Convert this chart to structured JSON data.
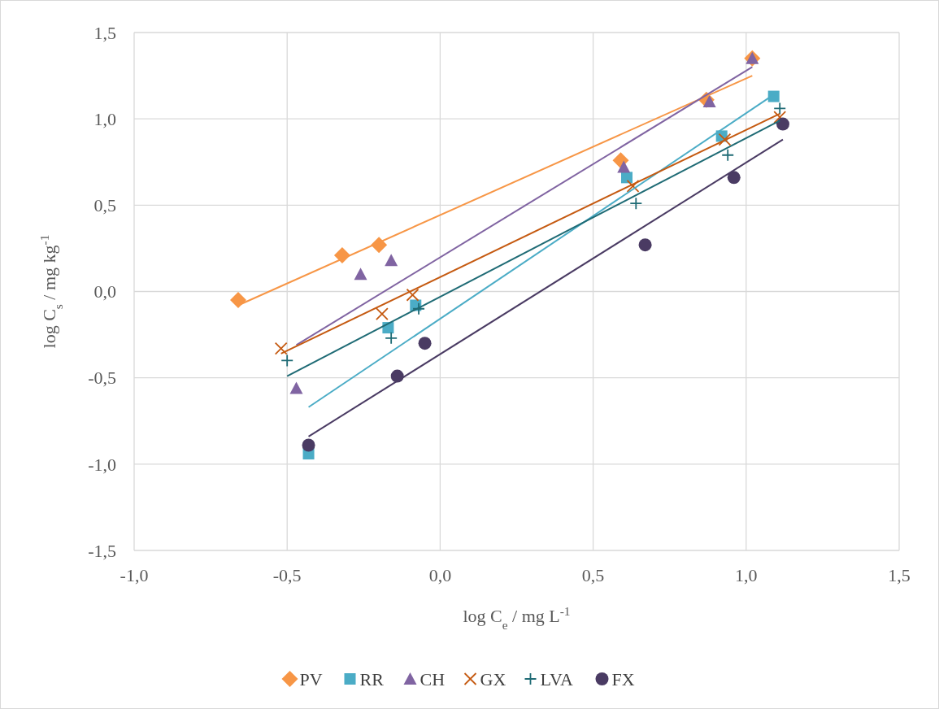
{
  "chart_data": {
    "type": "scatter",
    "xlabel": "log C$_{e}$ / mg L$^{-1}$",
    "ylabel": "log C$_{s}$ / mg kg$^{-1}$",
    "xlim": [
      -1,
      1.5
    ],
    "ylim": [
      -1.5,
      1.5
    ],
    "xticks": [
      {
        "value": -1,
        "label": "-1,0"
      },
      {
        "value": -0.5,
        "label": "-0,5"
      },
      {
        "value": 0,
        "label": "0,0"
      },
      {
        "value": 0.5,
        "label": "0,5"
      },
      {
        "value": 1,
        "label": "1,0"
      },
      {
        "value": 1.5,
        "label": "1,5"
      }
    ],
    "yticks": [
      {
        "value": -1.5,
        "label": "-1,5"
      },
      {
        "value": -1,
        "label": "-1,0"
      },
      {
        "value": -0.5,
        "label": "-0,5"
      },
      {
        "value": 0,
        "label": "0,0"
      },
      {
        "value": 0.5,
        "label": "0,5"
      },
      {
        "value": 1,
        "label": "1,0"
      },
      {
        "value": 1.5,
        "label": "1,5"
      }
    ],
    "grid": true,
    "legend": "bottom",
    "series": [
      {
        "name": "PV",
        "color": "#f79646",
        "marker": "diamond",
        "x": [
          -0.66,
          -0.32,
          -0.2,
          0.59,
          0.87,
          1.02
        ],
        "values": [
          -0.05,
          0.21,
          0.27,
          0.76,
          1.11,
          1.35
        ]
      },
      {
        "name": "RR",
        "color": "#4bacc6",
        "marker": "square",
        "x": [
          -0.43,
          -0.17,
          -0.08,
          0.61,
          0.92,
          1.09
        ],
        "values": [
          -0.94,
          -0.21,
          -0.08,
          0.66,
          0.9,
          1.13
        ]
      },
      {
        "name": "CH",
        "color": "#8064a2",
        "marker": "triangle",
        "x": [
          -0.47,
          -0.26,
          -0.16,
          0.6,
          0.88,
          1.02
        ],
        "values": [
          -0.56,
          0.1,
          0.18,
          0.72,
          1.1,
          1.35
        ]
      },
      {
        "name": "GX",
        "color": "#c55a11",
        "marker": "cross",
        "x": [
          -0.52,
          -0.19,
          -0.09,
          0.63,
          0.93,
          1.11
        ],
        "values": [
          -0.33,
          -0.13,
          -0.02,
          0.61,
          0.88,
          1.01
        ]
      },
      {
        "name": "LVA",
        "color": "#1f6b75",
        "marker": "plus",
        "x": [
          -0.5,
          -0.16,
          -0.07,
          0.64,
          0.94,
          1.11
        ],
        "values": [
          -0.4,
          -0.27,
          -0.1,
          0.51,
          0.79,
          1.06
        ]
      },
      {
        "name": "FX",
        "color": "#4a3b63",
        "marker": "circle",
        "x": [
          -0.43,
          -0.14,
          -0.05,
          0.67,
          0.96,
          1.12
        ],
        "values": [
          -0.89,
          -0.49,
          -0.3,
          0.27,
          0.66,
          0.97
        ]
      },
      {
        "type": "line",
        "color": "#f79646",
        "x": [
          -0.66,
          1.02
        ],
        "values": [
          -0.08,
          1.25
        ]
      },
      {
        "type": "line",
        "color": "#4bacc6",
        "x": [
          -0.43,
          1.09
        ],
        "values": [
          -0.67,
          1.14
        ]
      },
      {
        "type": "line",
        "color": "#8064a2",
        "x": [
          -0.47,
          1.02
        ],
        "values": [
          -0.31,
          1.3
        ]
      },
      {
        "type": "line",
        "color": "#c55a11",
        "x": [
          -0.52,
          1.11
        ],
        "values": [
          -0.36,
          1.03
        ]
      },
      {
        "type": "line",
        "color": "#1f6b75",
        "x": [
          -0.5,
          1.11
        ],
        "values": [
          -0.49,
          0.99
        ]
      },
      {
        "type": "line",
        "color": "#4a3b63",
        "x": [
          -0.43,
          1.12
        ],
        "values": [
          -0.84,
          0.88
        ]
      }
    ]
  }
}
